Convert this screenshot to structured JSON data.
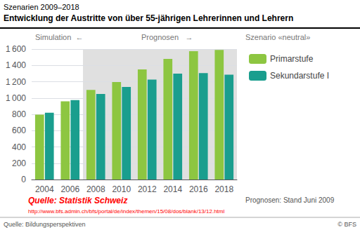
{
  "chart_data": {
    "type": "bar",
    "title": "Szenarien 2009–2018",
    "subtitle": "Entwicklung der Austritte von über 55-jährigen Lehrerinnen und Lehrern",
    "categories": [
      "2004",
      "2006",
      "2008",
      "2010",
      "2012",
      "2014",
      "2016",
      "2018"
    ],
    "series": [
      {
        "name": "Primarstufe",
        "color": "#8dc641",
        "values": [
          795,
          960,
          1100,
          1195,
          1350,
          1480,
          1575,
          1590
        ]
      },
      {
        "name": "Sekundarstufe I",
        "color": "#1a9e8e",
        "values": [
          820,
          975,
          1050,
          1135,
          1225,
          1300,
          1305,
          1285
        ]
      }
    ],
    "ylim": [
      0,
      1600
    ],
    "yticks": [
      0,
      200,
      400,
      600,
      800,
      {
        "value": 1000,
        "label": "1 000"
      },
      {
        "value": 1200,
        "label": "1 200"
      },
      {
        "value": 1400,
        "label": "1 400"
      },
      {
        "value": 1600,
        "label": "1 600"
      }
    ],
    "grid": true,
    "legend": "right",
    "simulation_label": "Simulation  ←",
    "prognosen_label": "Prognosen",
    "arrow_right": "→",
    "prognosen_span": {
      "from": "2008",
      "to": "2018",
      "color": "#e0e0e0"
    },
    "legend_title": "Szenario «neutral»",
    "note": "Prognosen: Stand Juni 2009",
    "source": "Quelle: Statistik Schweiz",
    "source_url": "http://www.bfs.admin.ch/bfs/portal/de/index/themen/15/08/dos/blank/13/12.html",
    "source_color": "red",
    "footer_left": "Quelle: Bildungsperspektiven",
    "footer_right": "© BFS"
  }
}
